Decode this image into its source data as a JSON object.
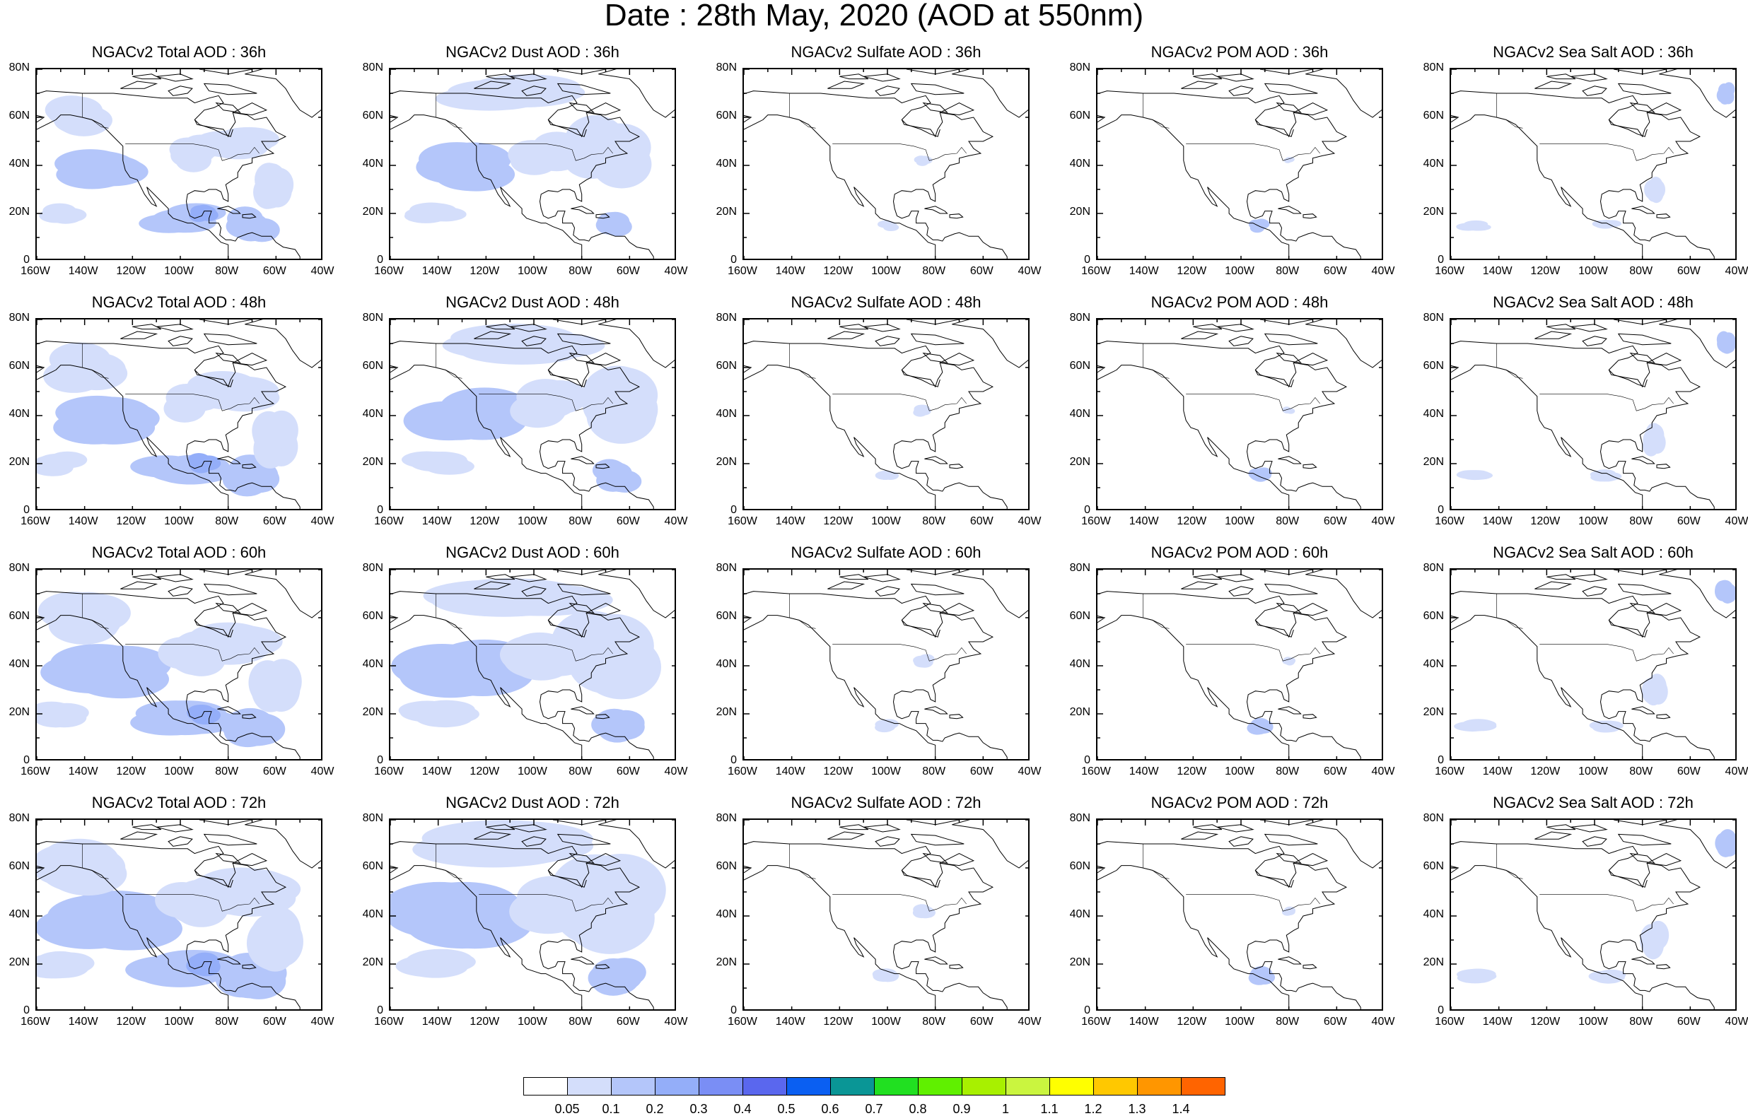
{
  "title": "Date : 28th May, 2020 (AOD at 550nm)",
  "axes": {
    "lon_labels": [
      "160W",
      "140W",
      "120W",
      "100W",
      "80W",
      "60W",
      "40W"
    ],
    "lat_labels": [
      "0",
      "20N",
      "40N",
      "60N",
      "80N"
    ],
    "lon_range": [
      -160,
      -40
    ],
    "lat_range": [
      0,
      80
    ]
  },
  "panels": [
    {
      "title": "NGACv2 Total AOD : 36h",
      "species": "total",
      "hour": 36
    },
    {
      "title": "NGACv2 Dust AOD : 36h",
      "species": "dust",
      "hour": 36
    },
    {
      "title": "NGACv2 Sulfate AOD : 36h",
      "species": "sulfate",
      "hour": 36
    },
    {
      "title": "NGACv2 POM AOD : 36h",
      "species": "pom",
      "hour": 36
    },
    {
      "title": "NGACv2 Sea Salt AOD : 36h",
      "species": "seasalt",
      "hour": 36
    },
    {
      "title": "NGACv2 Total AOD : 48h",
      "species": "total",
      "hour": 48
    },
    {
      "title": "NGACv2 Dust AOD : 48h",
      "species": "dust",
      "hour": 48
    },
    {
      "title": "NGACv2 Sulfate AOD : 48h",
      "species": "sulfate",
      "hour": 48
    },
    {
      "title": "NGACv2 POM AOD : 48h",
      "species": "pom",
      "hour": 48
    },
    {
      "title": "NGACv2 Sea Salt AOD : 48h",
      "species": "seasalt",
      "hour": 48
    },
    {
      "title": "NGACv2 Total AOD : 60h",
      "species": "total",
      "hour": 60
    },
    {
      "title": "NGACv2 Dust AOD : 60h",
      "species": "dust",
      "hour": 60
    },
    {
      "title": "NGACv2 Sulfate AOD : 60h",
      "species": "sulfate",
      "hour": 60
    },
    {
      "title": "NGACv2 POM AOD : 60h",
      "species": "pom",
      "hour": 60
    },
    {
      "title": "NGACv2 Sea Salt AOD : 60h",
      "species": "seasalt",
      "hour": 60
    },
    {
      "title": "NGACv2 Total AOD : 72h",
      "species": "total",
      "hour": 72
    },
    {
      "title": "NGACv2 Dust AOD : 72h",
      "species": "dust",
      "hour": 72
    },
    {
      "title": "NGACv2 Sulfate AOD : 72h",
      "species": "sulfate",
      "hour": 72
    },
    {
      "title": "NGACv2 POM AOD : 72h",
      "species": "pom",
      "hour": 72
    },
    {
      "title": "NGACv2 Sea Salt  AOD : 72h",
      "species": "seasalt",
      "hour": 72
    }
  ],
  "colorbar": {
    "labels": [
      "0.05",
      "0.1",
      "0.2",
      "0.3",
      "0.4",
      "0.5",
      "0.6",
      "0.7",
      "0.8",
      "0.9",
      "1",
      "1.1",
      "1.2",
      "1.3",
      "1.4"
    ],
    "colors": [
      "#ffffff",
      "#d4defb",
      "#b4c6fa",
      "#94aef9",
      "#7a8ef5",
      "#5a67ee",
      "#0a5ff2",
      "#0a9696",
      "#21e021",
      "#60f000",
      "#a8f000",
      "#caf53f",
      "#ffff00",
      "#ffc800",
      "#ff9600",
      "#ff6400",
      "#ff1e1e"
    ]
  }
}
